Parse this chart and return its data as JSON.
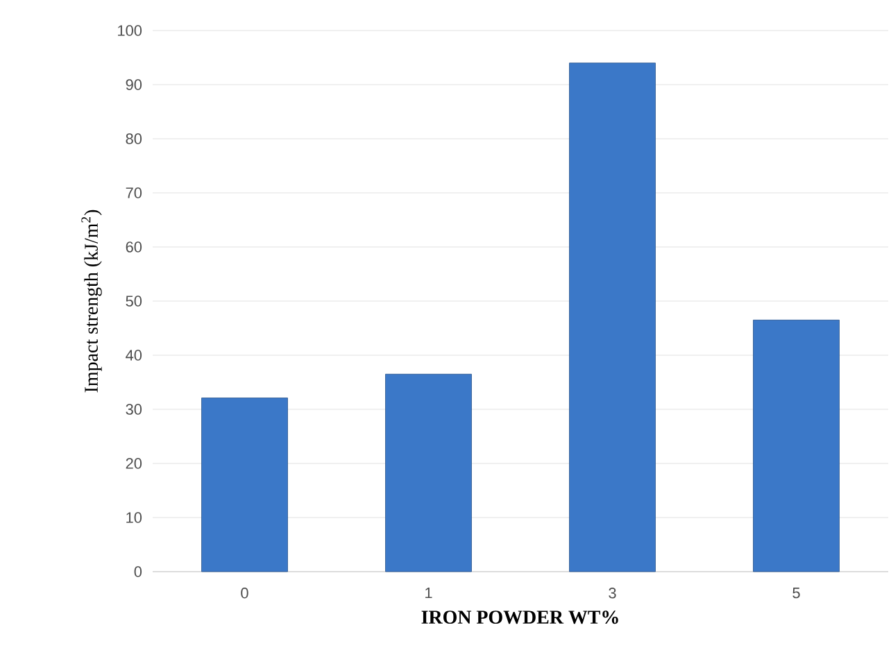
{
  "chart_data": {
    "type": "bar",
    "xlabel": "IRON  POWDER WT%",
    "ylabel": "Impact strength (kJ/m$^{2}$)",
    "categories": [
      "0",
      "1",
      "3",
      "5"
    ],
    "values": [
      32.1,
      36.5,
      94,
      46.5
    ],
    "color": "#3b78c8",
    "ylim": [
      0,
      100
    ],
    "yticks": [
      0,
      10,
      20,
      30,
      40,
      50,
      60,
      70,
      80,
      90,
      100
    ],
    "grid": "y"
  }
}
